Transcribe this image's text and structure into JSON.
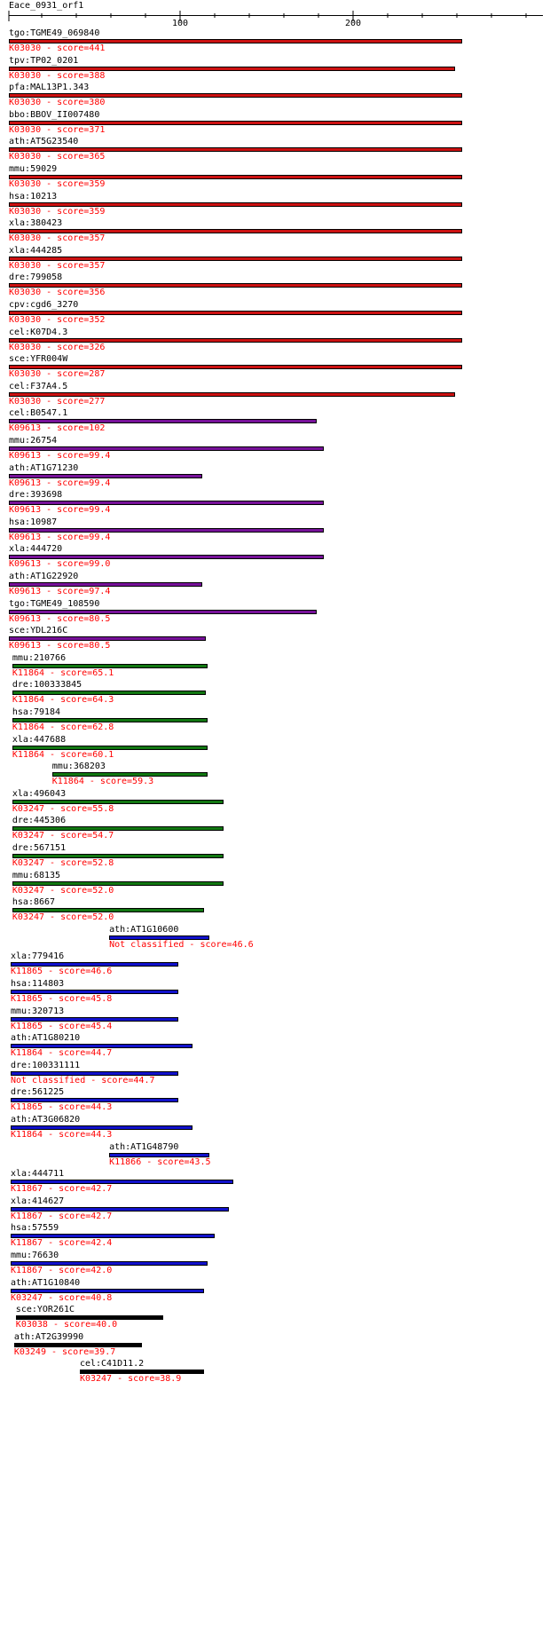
{
  "query": {
    "name": "Eace_0931_orf1",
    "ticks": [
      "100",
      "200"
    ]
  },
  "colors": {
    "red": "#cc1111",
    "purple": "#771199",
    "green": "#117711",
    "blue": "#1111cc",
    "black": "#000000"
  },
  "hits": [
    {
      "name": "tgo:TGME49_069840",
      "ko": "K03030 - score=441",
      "color": "red",
      "start": 1,
      "end": 262
    },
    {
      "name": "tpv:TP02_0201",
      "ko": "K03030 - score=388",
      "color": "red",
      "start": 1,
      "end": 258
    },
    {
      "name": "pfa:MAL13P1.343",
      "ko": "K03030 - score=380",
      "color": "red",
      "start": 1,
      "end": 262
    },
    {
      "name": "bbo:BBOV_II007480",
      "ko": "K03030 - score=371",
      "color": "red",
      "start": 1,
      "end": 262
    },
    {
      "name": "ath:AT5G23540",
      "ko": "K03030 - score=365",
      "color": "red",
      "start": 1,
      "end": 262
    },
    {
      "name": "mmu:59029",
      "ko": "K03030 - score=359",
      "color": "red",
      "start": 1,
      "end": 262
    },
    {
      "name": "hsa:10213",
      "ko": "K03030 - score=359",
      "color": "red",
      "start": 1,
      "end": 262
    },
    {
      "name": "xla:380423",
      "ko": "K03030 - score=357",
      "color": "red",
      "start": 1,
      "end": 262
    },
    {
      "name": "xla:444285",
      "ko": "K03030 - score=357",
      "color": "red",
      "start": 1,
      "end": 262
    },
    {
      "name": "dre:799058",
      "ko": "K03030 - score=356",
      "color": "red",
      "start": 1,
      "end": 262
    },
    {
      "name": "cpv:cgd6_3270",
      "ko": "K03030 - score=352",
      "color": "red",
      "start": 1,
      "end": 262
    },
    {
      "name": "cel:K07D4.3",
      "ko": "K03030 - score=326",
      "color": "red",
      "start": 1,
      "end": 262
    },
    {
      "name": "sce:YFR004W",
      "ko": "K03030 - score=287",
      "color": "red",
      "start": 1,
      "end": 262
    },
    {
      "name": "cel:F37A4.5",
      "ko": "K03030 - score=277",
      "color": "red",
      "start": 1,
      "end": 258
    },
    {
      "name": "cel:B0547.1",
      "ko": "K09613 - score=102",
      "color": "purple",
      "start": 1,
      "end": 178
    },
    {
      "name": "mmu:26754",
      "ko": "K09613 - score=99.4",
      "color": "purple",
      "start": 1,
      "end": 182
    },
    {
      "name": "ath:AT1G71230",
      "ko": "K09613 - score=99.4",
      "color": "purple",
      "start": 1,
      "end": 112
    },
    {
      "name": "dre:393698",
      "ko": "K09613 - score=99.4",
      "color": "purple",
      "start": 1,
      "end": 182
    },
    {
      "name": "hsa:10987",
      "ko": "K09613 - score=99.4",
      "color": "purple",
      "start": 1,
      "end": 182
    },
    {
      "name": "xla:444720",
      "ko": "K09613 - score=99.0",
      "color": "purple",
      "start": 1,
      "end": 182
    },
    {
      "name": "ath:AT1G22920",
      "ko": "K09613 - score=97.4",
      "color": "purple",
      "start": 1,
      "end": 112
    },
    {
      "name": "tgo:TGME49_108590",
      "ko": "K09613 - score=80.5",
      "color": "purple",
      "start": 1,
      "end": 178
    },
    {
      "name": "sce:YDL216C",
      "ko": "K09613 - score=80.5",
      "color": "purple",
      "start": 1,
      "end": 114
    },
    {
      "name": "mmu:210766",
      "ko": "K11864 - score=65.1",
      "color": "green",
      "start": 3,
      "end": 115
    },
    {
      "name": "dre:100333845",
      "ko": "K11864 - score=64.3",
      "color": "green",
      "start": 3,
      "end": 114
    },
    {
      "name": "hsa:79184",
      "ko": "K11864 - score=62.8",
      "color": "green",
      "start": 3,
      "end": 115
    },
    {
      "name": "xla:447688",
      "ko": "K11864 - score=60.1",
      "color": "green",
      "start": 3,
      "end": 115
    },
    {
      "name": "mmu:368203",
      "ko": "K11864 - score=59.3",
      "color": "green",
      "start": 26,
      "end": 115
    },
    {
      "name": "xla:496043",
      "ko": "K03247 - score=55.8",
      "color": "green",
      "start": 3,
      "end": 124
    },
    {
      "name": "dre:445306",
      "ko": "K03247 - score=54.7",
      "color": "green",
      "start": 3,
      "end": 124
    },
    {
      "name": "dre:567151",
      "ko": "K03247 - score=52.8",
      "color": "green",
      "start": 3,
      "end": 124
    },
    {
      "name": "mmu:68135",
      "ko": "K03247 - score=52.0",
      "color": "green",
      "start": 3,
      "end": 124
    },
    {
      "name": "hsa:8667",
      "ko": "K03247 - score=52.0",
      "color": "green",
      "start": 3,
      "end": 113
    },
    {
      "name": "ath:AT1G10600",
      "ko": "Not classified - score=46.6",
      "color": "blue",
      "start": 59,
      "end": 116
    },
    {
      "name": "xla:779416",
      "ko": "K11865 - score=46.6",
      "color": "blue",
      "start": 2,
      "end": 98
    },
    {
      "name": "hsa:114803",
      "ko": "K11865 - score=45.8",
      "color": "blue",
      "start": 2,
      "end": 98
    },
    {
      "name": "mmu:320713",
      "ko": "K11865 - score=45.4",
      "color": "blue",
      "start": 2,
      "end": 98
    },
    {
      "name": "ath:AT1G80210",
      "ko": "K11864 - score=44.7",
      "color": "blue",
      "start": 2,
      "end": 106
    },
    {
      "name": "dre:100331111",
      "ko": "Not classified - score=44.7",
      "color": "blue",
      "start": 2,
      "end": 98
    },
    {
      "name": "dre:561225",
      "ko": "K11865 - score=44.3",
      "color": "blue",
      "start": 2,
      "end": 98
    },
    {
      "name": "ath:AT3G06820",
      "ko": "K11864 - score=44.3",
      "color": "blue",
      "start": 2,
      "end": 106
    },
    {
      "name": "ath:AT1G48790",
      "ko": "K11866 - score=43.5",
      "color": "blue",
      "start": 59,
      "end": 116
    },
    {
      "name": "xla:444711",
      "ko": "K11867 - score=42.7",
      "color": "blue",
      "start": 2,
      "end": 130
    },
    {
      "name": "xla:414627",
      "ko": "K11867 - score=42.7",
      "color": "blue",
      "start": 2,
      "end": 127
    },
    {
      "name": "hsa:57559",
      "ko": "K11867 - score=42.4",
      "color": "blue",
      "start": 2,
      "end": 119
    },
    {
      "name": "mmu:76630",
      "ko": "K11867 - score=42.0",
      "color": "blue",
      "start": 2,
      "end": 115
    },
    {
      "name": "ath:AT1G10840",
      "ko": "K03247 - score=40.8",
      "color": "blue",
      "start": 2,
      "end": 113
    },
    {
      "name": "sce:YOR261C",
      "ko": "K03038 - score=40.0",
      "color": "black",
      "start": 5,
      "end": 89
    },
    {
      "name": "ath:AT2G39990",
      "ko": "K03249 - score=39.7",
      "color": "black",
      "start": 4,
      "end": 77
    },
    {
      "name": "cel:C41D11.2",
      "ko": "K03247 - score=38.9",
      "color": "black",
      "start": 42,
      "end": 113
    }
  ]
}
